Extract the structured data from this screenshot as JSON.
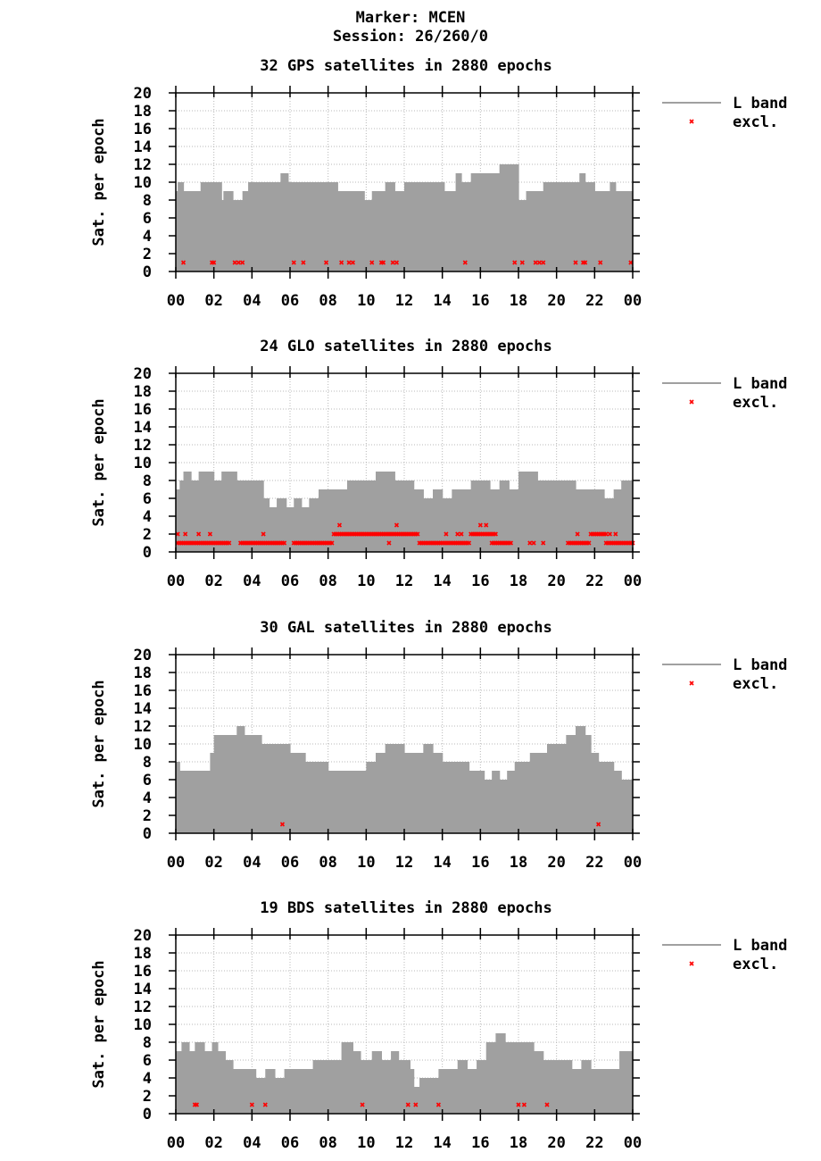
{
  "header": {
    "marker": "Marker: MCEN",
    "session": "Session: 26/260/0"
  },
  "colors": {
    "bars": "#a0a0a0",
    "excl": "#ff0000",
    "grid": "#b8b8b8",
    "axis": "#000000"
  },
  "chart_data": [
    {
      "type": "bar",
      "title": "32 GPS satellites in 2880 epochs",
      "ylabel": "Sat. per epoch",
      "xlabel": "",
      "ylim": [
        0,
        20
      ],
      "xlim": [
        0,
        24
      ],
      "yticks": [
        "0",
        "2",
        "4",
        "6",
        "8",
        "10",
        "12",
        "14",
        "16",
        "18",
        "20"
      ],
      "xticks": [
        "00",
        "02",
        "04",
        "06",
        "08",
        "10",
        "12",
        "14",
        "16",
        "18",
        "20",
        "22",
        "00"
      ],
      "grid": true,
      "legend_position": "right",
      "series": [
        {
          "name": "L band",
          "kind": "histogram",
          "breaks": [
            0,
            0.1,
            0.4,
            0.5,
            1.3,
            2.0,
            2.4,
            2.5,
            3.0,
            3.5,
            3.8,
            4.3,
            4.9,
            5.5,
            5.9,
            6.3,
            6.8,
            7.9,
            8.3,
            8.5,
            9.0,
            9.5,
            9.9,
            10.3,
            11.0,
            11.5,
            12.0,
            12.6,
            13.0,
            13.6,
            14.1,
            14.7,
            15.0,
            15.5,
            15.8,
            16.5,
            17.0,
            17.5,
            17.8,
            18.0,
            18.4,
            19.3,
            20.0,
            20.6,
            21.2,
            21.5,
            22.0,
            22.5,
            22.8,
            23.1,
            24.0
          ],
          "values": [
            9,
            10,
            9,
            9,
            10,
            10,
            8,
            9,
            8,
            9,
            10,
            10,
            10,
            11,
            10,
            10,
            10,
            10,
            10,
            9,
            9,
            9,
            8,
            9,
            10,
            9,
            10,
            10,
            10,
            10,
            9,
            11,
            10,
            11,
            11,
            11,
            12,
            12,
            12,
            8,
            9,
            10,
            10,
            10,
            11,
            10,
            9,
            9,
            10,
            9
          ]
        },
        {
          "name": "excl.",
          "kind": "points",
          "points": [
            [
              0.4,
              1
            ],
            [
              1.9,
              1
            ],
            [
              2.0,
              1
            ],
            [
              3.1,
              1
            ],
            [
              3.3,
              1
            ],
            [
              3.5,
              1
            ],
            [
              6.2,
              1
            ],
            [
              6.7,
              1
            ],
            [
              7.9,
              1
            ],
            [
              8.7,
              1
            ],
            [
              9.1,
              1
            ],
            [
              9.3,
              1
            ],
            [
              10.3,
              1
            ],
            [
              10.8,
              1
            ],
            [
              10.9,
              1
            ],
            [
              11.4,
              1
            ],
            [
              11.6,
              1
            ],
            [
              15.2,
              1
            ],
            [
              17.8,
              1
            ],
            [
              18.2,
              1
            ],
            [
              18.9,
              1
            ],
            [
              19.1,
              1
            ],
            [
              19.3,
              1
            ],
            [
              21.0,
              1
            ],
            [
              21.4,
              1
            ],
            [
              21.5,
              1
            ],
            [
              22.3,
              1
            ],
            [
              23.9,
              1
            ]
          ]
        }
      ]
    },
    {
      "type": "bar",
      "title": "24 GLO satellites in 2880 epochs",
      "ylabel": "Sat. per epoch",
      "xlabel": "",
      "ylim": [
        0,
        20
      ],
      "xlim": [
        0,
        24
      ],
      "yticks": [
        "0",
        "2",
        "4",
        "6",
        "8",
        "10",
        "12",
        "14",
        "16",
        "18",
        "20"
      ],
      "xticks": [
        "00",
        "02",
        "04",
        "06",
        "08",
        "10",
        "12",
        "14",
        "16",
        "18",
        "20",
        "22",
        "00"
      ],
      "grid": true,
      "legend_position": "right",
      "series": [
        {
          "name": "L band",
          "kind": "histogram",
          "breaks": [
            0,
            0.2,
            0.4,
            0.8,
            1.2,
            1.5,
            2.0,
            2.4,
            2.8,
            3.2,
            3.6,
            4.0,
            4.6,
            4.9,
            5.3,
            5.8,
            6.2,
            6.6,
            7.0,
            7.5,
            8.0,
            8.5,
            9.0,
            9.5,
            10.0,
            10.5,
            11.0,
            11.5,
            12.0,
            12.5,
            13.0,
            13.5,
            14.0,
            14.5,
            15.0,
            15.5,
            16.0,
            16.5,
            17.0,
            17.5,
            18.0,
            18.5,
            19.0,
            19.5,
            20.0,
            20.5,
            21.0,
            21.5,
            22.0,
            22.5,
            23.0,
            23.4,
            24.0
          ],
          "values": [
            7,
            8,
            9,
            8,
            9,
            9,
            8,
            9,
            9,
            8,
            8,
            8,
            6,
            5,
            6,
            5,
            6,
            5,
            6,
            7,
            7,
            7,
            8,
            8,
            8,
            9,
            9,
            8,
            8,
            7,
            6,
            7,
            6,
            7,
            7,
            8,
            8,
            7,
            8,
            7,
            9,
            9,
            8,
            8,
            8,
            8,
            7,
            7,
            7,
            6,
            7,
            8
          ]
        },
        {
          "name": "excl.",
          "kind": "points",
          "segments": [
            [
              0.1,
              2.8,
              1
            ],
            [
              3.4,
              5.7,
              1
            ],
            [
              6.2,
              8.2,
              1
            ],
            [
              8.3,
              12.7,
              2
            ],
            [
              12.8,
              15.4,
              1
            ],
            [
              15.5,
              16.8,
              2
            ],
            [
              16.6,
              17.6,
              1
            ],
            [
              20.6,
              21.7,
              1
            ],
            [
              21.8,
              22.6,
              2
            ],
            [
              22.6,
              24.0,
              1
            ]
          ],
          "points": [
            [
              0.1,
              2
            ],
            [
              0.5,
              2
            ],
            [
              1.2,
              2
            ],
            [
              1.8,
              2
            ],
            [
              4.6,
              2
            ],
            [
              8.6,
              3
            ],
            [
              11.2,
              1
            ],
            [
              11.6,
              3
            ],
            [
              14.2,
              2
            ],
            [
              14.8,
              2
            ],
            [
              15.0,
              2
            ],
            [
              16.0,
              3
            ],
            [
              16.3,
              3
            ],
            [
              18.6,
              1
            ],
            [
              18.8,
              1
            ],
            [
              19.3,
              1
            ],
            [
              21.1,
              2
            ],
            [
              22.8,
              2
            ],
            [
              23.1,
              2
            ]
          ]
        }
      ]
    },
    {
      "type": "bar",
      "title": "30 GAL satellites in 2880 epochs",
      "ylabel": "Sat. per epoch",
      "xlabel": "",
      "ylim": [
        0,
        20
      ],
      "xlim": [
        0,
        24
      ],
      "yticks": [
        "0",
        "2",
        "4",
        "6",
        "8",
        "10",
        "12",
        "14",
        "16",
        "18",
        "20"
      ],
      "xticks": [
        "00",
        "02",
        "04",
        "06",
        "08",
        "10",
        "12",
        "14",
        "16",
        "18",
        "20",
        "22",
        "00"
      ],
      "grid": true,
      "legend_position": "right",
      "series": [
        {
          "name": "L band",
          "kind": "histogram",
          "breaks": [
            0,
            0.2,
            0.5,
            1.0,
            1.5,
            1.8,
            2.0,
            2.4,
            2.8,
            3.2,
            3.6,
            4.0,
            4.5,
            5.0,
            5.5,
            6.0,
            6.4,
            6.8,
            7.2,
            7.6,
            8.0,
            8.5,
            9.0,
            9.5,
            10.0,
            10.5,
            11.0,
            11.5,
            12.0,
            12.5,
            13.0,
            13.5,
            14.0,
            14.5,
            15.0,
            15.4,
            15.8,
            16.2,
            16.6,
            17.0,
            17.4,
            17.8,
            18.2,
            18.6,
            19.0,
            19.5,
            20.0,
            20.5,
            21.0,
            21.5,
            21.8,
            22.2,
            22.6,
            23.0,
            23.4,
            24.0
          ],
          "values": [
            8,
            7,
            7,
            7,
            7,
            9,
            11,
            11,
            11,
            12,
            11,
            11,
            10,
            10,
            10,
            9,
            9,
            8,
            8,
            8,
            7,
            7,
            7,
            7,
            8,
            9,
            10,
            10,
            9,
            9,
            10,
            9,
            8,
            8,
            8,
            7,
            7,
            6,
            7,
            6,
            7,
            8,
            8,
            9,
            9,
            10,
            10,
            11,
            12,
            11,
            9,
            8,
            8,
            7,
            6
          ]
        },
        {
          "name": "excl.",
          "kind": "points",
          "points": [
            [
              5.6,
              1
            ],
            [
              22.2,
              1
            ]
          ]
        }
      ]
    },
    {
      "type": "bar",
      "title": "19 BDS satellites in 2880 epochs",
      "ylabel": "Sat. per epoch",
      "xlabel": "",
      "ylim": [
        0,
        20
      ],
      "xlim": [
        0,
        24
      ],
      "yticks": [
        "0",
        "2",
        "4",
        "6",
        "8",
        "10",
        "12",
        "14",
        "16",
        "18",
        "20"
      ],
      "xticks": [
        "00",
        "02",
        "04",
        "06",
        "08",
        "10",
        "12",
        "14",
        "16",
        "18",
        "20",
        "22",
        "00"
      ],
      "grid": true,
      "legend_position": "right",
      "series": [
        {
          "name": "L band",
          "kind": "histogram",
          "breaks": [
            0,
            0.3,
            0.7,
            1.0,
            1.5,
            1.9,
            2.2,
            2.6,
            3.0,
            3.4,
            3.8,
            4.2,
            4.7,
            5.2,
            5.7,
            6.2,
            6.6,
            7.2,
            7.8,
            8.3,
            8.7,
            9.3,
            9.7,
            10.3,
            10.8,
            11.3,
            11.7,
            12.3,
            12.5,
            12.8,
            13.3,
            13.8,
            14.3,
            14.8,
            15.3,
            15.8,
            16.3,
            16.8,
            17.3,
            17.8,
            18.3,
            18.8,
            19.3,
            19.8,
            20.3,
            20.8,
            21.3,
            21.8,
            22.3,
            22.8,
            23.3,
            24.0
          ],
          "values": [
            7,
            8,
            7,
            8,
            7,
            8,
            7,
            6,
            5,
            5,
            5,
            4,
            5,
            4,
            5,
            5,
            5,
            6,
            6,
            6,
            8,
            7,
            6,
            7,
            6,
            7,
            6,
            5,
            3,
            4,
            4,
            5,
            5,
            6,
            5,
            6,
            8,
            9,
            8,
            8,
            8,
            7,
            6,
            6,
            6,
            5,
            6,
            5,
            5,
            5,
            7
          ]
        },
        {
          "name": "excl.",
          "kind": "points",
          "points": [
            [
              1.0,
              1
            ],
            [
              1.1,
              1
            ],
            [
              4.0,
              1
            ],
            [
              4.7,
              1
            ],
            [
              9.8,
              1
            ],
            [
              12.2,
              1
            ],
            [
              12.6,
              1
            ],
            [
              13.8,
              1
            ],
            [
              18.0,
              1
            ],
            [
              18.3,
              1
            ],
            [
              19.5,
              1
            ]
          ]
        }
      ]
    }
  ]
}
